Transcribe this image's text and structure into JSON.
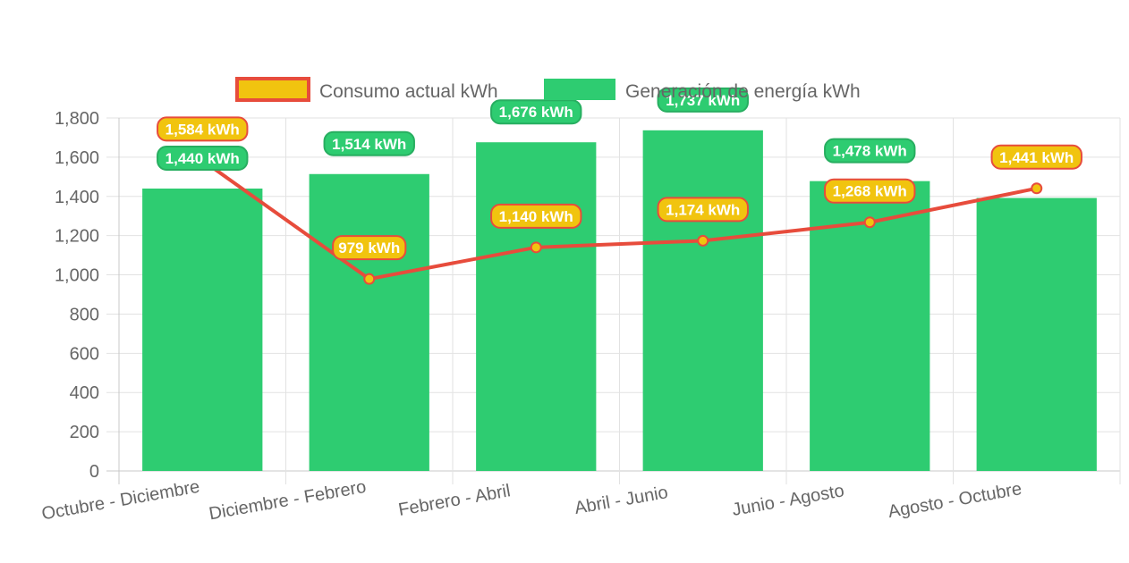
{
  "chart_data": {
    "type": "bar",
    "title": "",
    "xlabel": "",
    "ylabel": "",
    "categories": [
      "Octubre - Diciembre",
      "Diciembre - Febrero",
      "Febrero - Abril",
      "Abril - Junio",
      "Junio - Agosto",
      "Agosto - Octubre"
    ],
    "ylim": [
      0,
      1800
    ],
    "yticks": [
      "0",
      "200",
      "400",
      "600",
      "800",
      "1,000",
      "1,200",
      "1,400",
      "1,600",
      "1,800"
    ],
    "grid": true,
    "legend_position": "top",
    "series": [
      {
        "name": "Consumo actual kWh",
        "type": "line",
        "color": "#e74c3c",
        "fill": "#f1c40f",
        "values": [
          1584,
          979,
          1140,
          1174,
          1268,
          1441
        ],
        "labels": [
          "1,584 kWh",
          "979 kWh",
          "1,140 kWh",
          "1,174 kWh",
          "1,268 kWh",
          "1,441 kWh"
        ]
      },
      {
        "name": "Generación de energía kWh",
        "type": "bar",
        "color": "#2ecc71",
        "values": [
          1440,
          1514,
          1676,
          1737,
          1478,
          1392
        ],
        "labels": [
          "1,440 kWh",
          "1,514 kWh",
          "1,676 kWh",
          "1,737 kWh",
          "1,478 kWh",
          ""
        ]
      }
    ]
  }
}
